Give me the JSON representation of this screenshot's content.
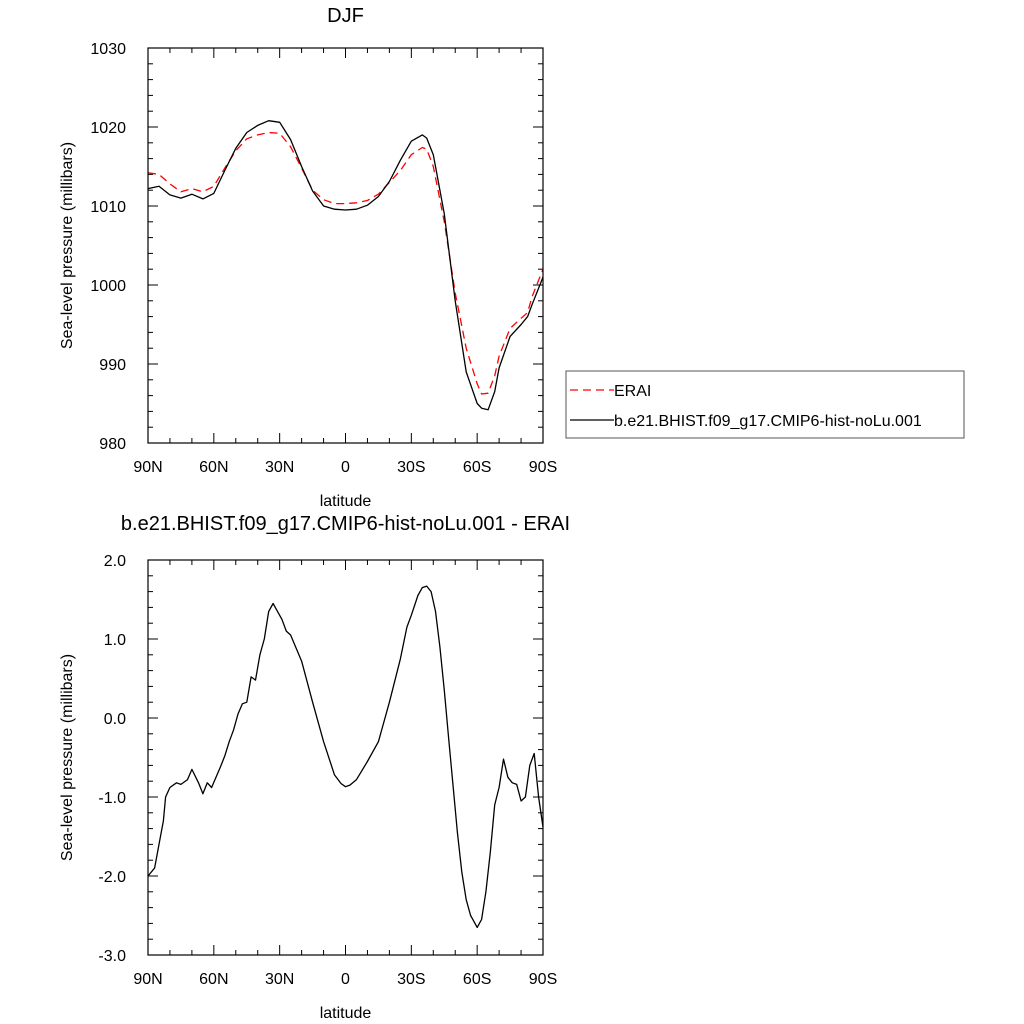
{
  "chart_data": [
    {
      "type": "line",
      "title": "DJF",
      "xlabel": "latitude",
      "ylabel": "Sea-level pressure (millibars)",
      "xlim": [
        -90,
        90
      ],
      "ylim": [
        980,
        1030
      ],
      "xticks": [
        -90,
        -60,
        -30,
        0,
        30,
        60,
        90
      ],
      "xticklabels": [
        "90N",
        "60N",
        "30N",
        "0",
        "30S",
        "60S",
        "90S"
      ],
      "yticks": [
        980,
        990,
        1000,
        1010,
        1020,
        1030
      ],
      "yticklabels": [
        "980",
        "990",
        "1000",
        "1010",
        "1020",
        "1030"
      ],
      "legend_position": "right",
      "series": [
        {
          "name": "ERAI",
          "color": "#ff0000",
          "dash": "dashed",
          "x": [
            -90,
            -85,
            -80,
            -75,
            -70,
            -65,
            -60,
            -55,
            -50,
            -45,
            -40,
            -35,
            -30,
            -25,
            -20,
            -15,
            -10,
            -5,
            0,
            5,
            10,
            15,
            20,
            25,
            30,
            35,
            37,
            40,
            45,
            50,
            55,
            60,
            62,
            65,
            68,
            70,
            75,
            80,
            83,
            85,
            90
          ],
          "y": [
            1014.2,
            1014,
            1012.8,
            1011.8,
            1012.2,
            1011.8,
            1012.5,
            1014.8,
            1017,
            1018.5,
            1019,
            1019.3,
            1019.2,
            1017.5,
            1014.8,
            1012,
            1010.8,
            1010.3,
            1010.3,
            1010.4,
            1010.7,
            1011.5,
            1013,
            1014.5,
            1016.5,
            1017.4,
            1017.2,
            1015,
            1008,
            999,
            992,
            987.5,
            986.2,
            986.3,
            988.5,
            991,
            994.5,
            995.8,
            996.5,
            998.5,
            1002
          ]
        },
        {
          "name": "b.e21.BHIST.f09_g17.CMIP6-hist-noLu.001",
          "color": "#000000",
          "dash": "solid",
          "x": [
            -90,
            -85,
            -80,
            -75,
            -70,
            -65,
            -60,
            -55,
            -50,
            -45,
            -40,
            -35,
            -30,
            -25,
            -20,
            -15,
            -10,
            -5,
            0,
            5,
            10,
            15,
            20,
            25,
            30,
            35,
            37,
            40,
            45,
            50,
            55,
            60,
            62,
            65,
            68,
            70,
            75,
            80,
            83,
            85,
            90
          ],
          "y": [
            1012.2,
            1012.5,
            1011.4,
            1011,
            1011.5,
            1010.9,
            1011.6,
            1014.5,
            1017.3,
            1019.3,
            1020.2,
            1020.8,
            1020.6,
            1018.4,
            1015,
            1011.9,
            1010,
            1009.6,
            1009.5,
            1009.6,
            1010.1,
            1011.2,
            1013.1,
            1015.8,
            1018.2,
            1019,
            1018.6,
            1016.5,
            1009,
            998,
            989,
            985,
            984.4,
            984.2,
            986.5,
            989.5,
            993.5,
            995,
            996,
            997.5,
            1001
          ]
        }
      ]
    },
    {
      "type": "line",
      "title": "b.e21.BHIST.f09_g17.CMIP6-hist-noLu.001 - ERAI",
      "xlabel": "latitude",
      "ylabel": "Sea-level pressure (millibars)",
      "xlim": [
        -90,
        90
      ],
      "ylim": [
        -3.0,
        2.0
      ],
      "xticks": [
        -90,
        -60,
        -30,
        0,
        30,
        60,
        90
      ],
      "xticklabels": [
        "90N",
        "60N",
        "30N",
        "0",
        "30S",
        "60S",
        "90S"
      ],
      "yticks": [
        -3.0,
        -2.0,
        -1.0,
        0.0,
        1.0,
        2.0
      ],
      "yticklabels": [
        "-3.0",
        "-2.0",
        "-1.0",
        "0.0",
        "1.0",
        "2.0"
      ],
      "series": [
        {
          "name": "",
          "color": "#000000",
          "dash": "solid",
          "x": [
            -90,
            -87,
            -85,
            -83,
            -82,
            -80,
            -77,
            -75,
            -72,
            -70,
            -67,
            -65,
            -63,
            -61,
            -59,
            -57,
            -55,
            -53,
            -51,
            -49,
            -47,
            -45,
            -43,
            -41,
            -39,
            -37,
            -35,
            -33,
            -31,
            -29,
            -27,
            -25,
            -20,
            -15,
            -10,
            -5,
            -2,
            0,
            2,
            5,
            10,
            15,
            20,
            25,
            28,
            30,
            33,
            35,
            37,
            39,
            41,
            43,
            45,
            47,
            49,
            51,
            53,
            55,
            57,
            58,
            60,
            62,
            64,
            66,
            68,
            70,
            72,
            74,
            76,
            78,
            80,
            82,
            84,
            86,
            88,
            90
          ],
          "y": [
            -2,
            -1.9,
            -1.6,
            -1.3,
            -1,
            -0.88,
            -0.82,
            -0.84,
            -0.78,
            -0.65,
            -0.82,
            -0.96,
            -0.82,
            -0.88,
            -0.75,
            -0.62,
            -0.48,
            -0.3,
            -0.15,
            0.05,
            0.18,
            0.2,
            0.52,
            0.48,
            0.8,
            1.0,
            1.35,
            1.45,
            1.35,
            1.25,
            1.1,
            1.05,
            0.72,
            0.2,
            -0.3,
            -0.72,
            -0.83,
            -0.87,
            -0.85,
            -0.78,
            -0.55,
            -0.3,
            0.2,
            0.75,
            1.15,
            1.3,
            1.55,
            1.65,
            1.67,
            1.6,
            1.35,
            0.9,
            0.35,
            -0.25,
            -0.85,
            -1.45,
            -1.95,
            -2.3,
            -2.5,
            -2.55,
            -2.65,
            -2.55,
            -2.2,
            -1.7,
            -1.1,
            -0.88,
            -0.52,
            -0.75,
            -0.82,
            -0.84,
            -1.05,
            -1.0,
            -0.6,
            -0.45,
            -1.0,
            -1.38
          ]
        }
      ]
    }
  ]
}
